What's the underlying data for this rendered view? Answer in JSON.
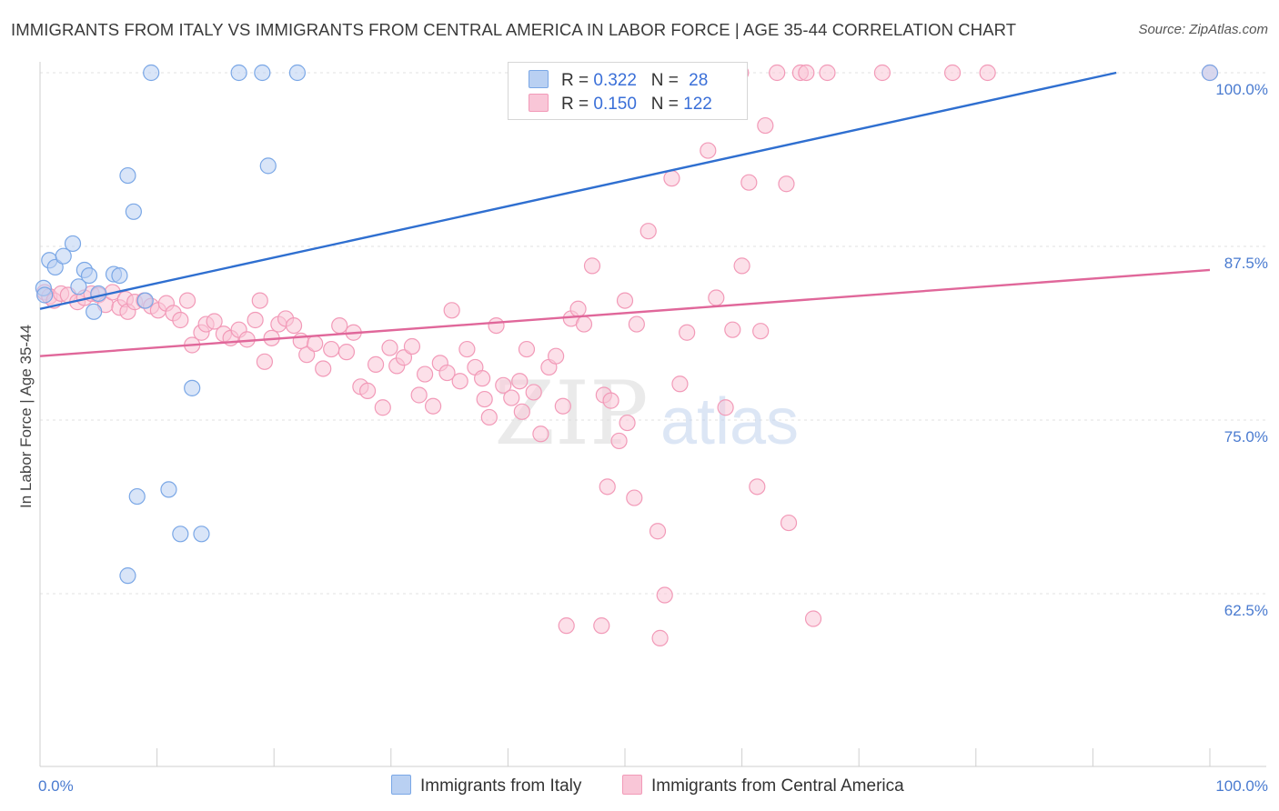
{
  "title": "IMMIGRANTS FROM ITALY VS IMMIGRANTS FROM CENTRAL AMERICA IN LABOR FORCE | AGE 35-44 CORRELATION CHART",
  "source": "Source: ZipAtlas.com",
  "watermark": {
    "zip": "ZIP",
    "atlas": "atlas"
  },
  "legend": {
    "rows": [
      {
        "r_label": "R = ",
        "r_value": "0.322",
        "n_label": "N = ",
        "n_value": "28"
      },
      {
        "r_label": "R = ",
        "r_value": "0.150",
        "n_label": "N = ",
        "n_value": "122"
      }
    ]
  },
  "chart_data": {
    "type": "scatter",
    "title": "IMMIGRANTS FROM ITALY VS IMMIGRANTS FROM CENTRAL AMERICA IN LABOR FORCE | AGE 35-44 CORRELATION CHART",
    "xlabel": "",
    "ylabel": "In Labor Force | Age 35-44",
    "xlim": [
      0,
      100
    ],
    "ylim": [
      52.5,
      102
    ],
    "x_tick_labels": [
      "0.0%",
      "100.0%"
    ],
    "y_ticks": [
      62.5,
      75.0,
      87.5,
      100.0
    ],
    "y_tick_labels": [
      "62.5%",
      "75.0%",
      "87.5%",
      "100.0%"
    ],
    "grid": true,
    "legend_position": "top-center",
    "colors": {
      "italy": "#7aa7e6",
      "central_america": "#f29ab8",
      "italy_line": "#2f6fd0",
      "central_america_line": "#e0679a"
    },
    "series": [
      {
        "name": "Immigrants from Italy",
        "color": "#7aa7e6",
        "trend": {
          "x": [
            0,
            92
          ],
          "y": [
            83.0,
            100.0
          ]
        },
        "points": [
          [
            0.3,
            84.5
          ],
          [
            0.8,
            86.5
          ],
          [
            1.3,
            86.0
          ],
          [
            2.0,
            86.8
          ],
          [
            2.8,
            87.7
          ],
          [
            3.3,
            84.6
          ],
          [
            3.8,
            85.8
          ],
          [
            4.2,
            85.4
          ],
          [
            4.6,
            82.8
          ],
          [
            5.0,
            84.1
          ],
          [
            6.3,
            85.5
          ],
          [
            6.8,
            85.4
          ],
          [
            9.0,
            83.6
          ],
          [
            7.5,
            92.6
          ],
          [
            8.0,
            90.0
          ],
          [
            9.5,
            100.0
          ],
          [
            17.0,
            100.0
          ],
          [
            19.0,
            100.0
          ],
          [
            22.0,
            100.0
          ],
          [
            19.5,
            93.3
          ],
          [
            13.0,
            77.3
          ],
          [
            8.3,
            69.5
          ],
          [
            11.0,
            70.0
          ],
          [
            12.0,
            66.8
          ],
          [
            13.8,
            66.8
          ],
          [
            7.5,
            63.8
          ],
          [
            100.0,
            100.0
          ],
          [
            0.4,
            84.0
          ]
        ]
      },
      {
        "name": "Immigrants from Central America",
        "color": "#f29ab8",
        "trend": {
          "x": [
            0,
            100
          ],
          "y": [
            79.6,
            85.8
          ]
        },
        "points": [
          [
            0.4,
            84.2
          ],
          [
            0.8,
            83.9
          ],
          [
            1.2,
            83.6
          ],
          [
            1.8,
            84.1
          ],
          [
            2.4,
            84.0
          ],
          [
            3.2,
            83.5
          ],
          [
            3.8,
            83.8
          ],
          [
            4.4,
            84.1
          ],
          [
            5.0,
            84.0
          ],
          [
            5.6,
            83.3
          ],
          [
            6.2,
            84.2
          ],
          [
            6.8,
            83.1
          ],
          [
            7.3,
            83.7
          ],
          [
            7.5,
            82.8
          ],
          [
            8.1,
            83.5
          ],
          [
            8.9,
            83.6
          ],
          [
            9.5,
            83.2
          ],
          [
            10.1,
            82.9
          ],
          [
            10.8,
            83.4
          ],
          [
            11.4,
            82.7
          ],
          [
            12.0,
            82.2
          ],
          [
            12.6,
            83.6
          ],
          [
            13.0,
            80.4
          ],
          [
            13.8,
            81.3
          ],
          [
            14.2,
            81.9
          ],
          [
            14.9,
            82.1
          ],
          [
            15.7,
            81.2
          ],
          [
            16.3,
            80.9
          ],
          [
            17.0,
            81.5
          ],
          [
            17.7,
            80.8
          ],
          [
            18.4,
            82.2
          ],
          [
            19.2,
            79.2
          ],
          [
            19.8,
            80.9
          ],
          [
            20.4,
            81.9
          ],
          [
            21.0,
            82.3
          ],
          [
            21.7,
            81.8
          ],
          [
            22.3,
            80.7
          ],
          [
            22.8,
            79.7
          ],
          [
            23.5,
            80.5
          ],
          [
            24.2,
            78.7
          ],
          [
            24.9,
            80.1
          ],
          [
            25.6,
            81.8
          ],
          [
            26.2,
            79.9
          ],
          [
            26.8,
            81.3
          ],
          [
            27.4,
            77.4
          ],
          [
            28.0,
            77.1
          ],
          [
            28.7,
            79.0
          ],
          [
            29.3,
            75.9
          ],
          [
            29.9,
            80.2
          ],
          [
            30.5,
            78.9
          ],
          [
            31.1,
            79.5
          ],
          [
            31.8,
            80.3
          ],
          [
            32.4,
            76.8
          ],
          [
            32.9,
            78.3
          ],
          [
            33.6,
            76.0
          ],
          [
            34.2,
            79.1
          ],
          [
            35.2,
            82.9
          ],
          [
            34.8,
            78.4
          ],
          [
            35.9,
            77.8
          ],
          [
            36.5,
            80.1
          ],
          [
            37.2,
            78.8
          ],
          [
            37.8,
            78.0
          ],
          [
            38.4,
            75.2
          ],
          [
            39.0,
            81.8
          ],
          [
            39.6,
            77.5
          ],
          [
            40.3,
            76.6
          ],
          [
            41.0,
            77.8
          ],
          [
            41.6,
            80.1
          ],
          [
            42.2,
            77.0
          ],
          [
            42.8,
            74.0
          ],
          [
            43.5,
            78.8
          ],
          [
            44.1,
            79.6
          ],
          [
            44.7,
            76.0
          ],
          [
            45.4,
            82.3
          ],
          [
            46.0,
            83.0
          ],
          [
            46.5,
            81.9
          ],
          [
            47.2,
            86.1
          ],
          [
            48.2,
            76.8
          ],
          [
            48.8,
            76.4
          ],
          [
            49.5,
            73.5
          ],
          [
            50.2,
            74.8
          ],
          [
            50.8,
            69.4
          ],
          [
            51.0,
            81.9
          ],
          [
            52.5,
            100.0
          ],
          [
            52.8,
            67.0
          ],
          [
            53.4,
            62.4
          ],
          [
            54.0,
            92.4
          ],
          [
            54.7,
            77.6
          ],
          [
            55.3,
            81.3
          ],
          [
            56.0,
            100.0
          ],
          [
            56.6,
            100.0
          ],
          [
            57.1,
            94.4
          ],
          [
            58.0,
            100.0
          ],
          [
            58.6,
            75.9
          ],
          [
            59.2,
            81.5
          ],
          [
            59.9,
            100.0
          ],
          [
            60.6,
            92.1
          ],
          [
            61.3,
            70.2
          ],
          [
            63.0,
            100.0
          ],
          [
            64.0,
            67.6
          ],
          [
            63.8,
            92.0
          ],
          [
            65.0,
            100.0
          ],
          [
            65.5,
            100.0
          ],
          [
            67.3,
            100.0
          ],
          [
            72.0,
            100.0
          ],
          [
            78.0,
            100.0
          ],
          [
            81.0,
            100.0
          ],
          [
            100.0,
            100.0
          ],
          [
            48.0,
            60.2
          ],
          [
            45.0,
            60.2
          ],
          [
            50.0,
            83.6
          ],
          [
            60.0,
            86.1
          ],
          [
            62.0,
            96.2
          ],
          [
            57.8,
            83.8
          ],
          [
            61.6,
            81.4
          ],
          [
            48.5,
            70.2
          ],
          [
            38.0,
            76.5
          ],
          [
            41.2,
            75.6
          ],
          [
            66.1,
            60.7
          ],
          [
            53.0,
            59.3
          ],
          [
            52.0,
            88.6
          ],
          [
            18.8,
            83.6
          ]
        ]
      }
    ]
  },
  "bottom_legend": [
    {
      "label": "Immigrants from Italy"
    },
    {
      "label": "Immigrants from Central America"
    }
  ]
}
